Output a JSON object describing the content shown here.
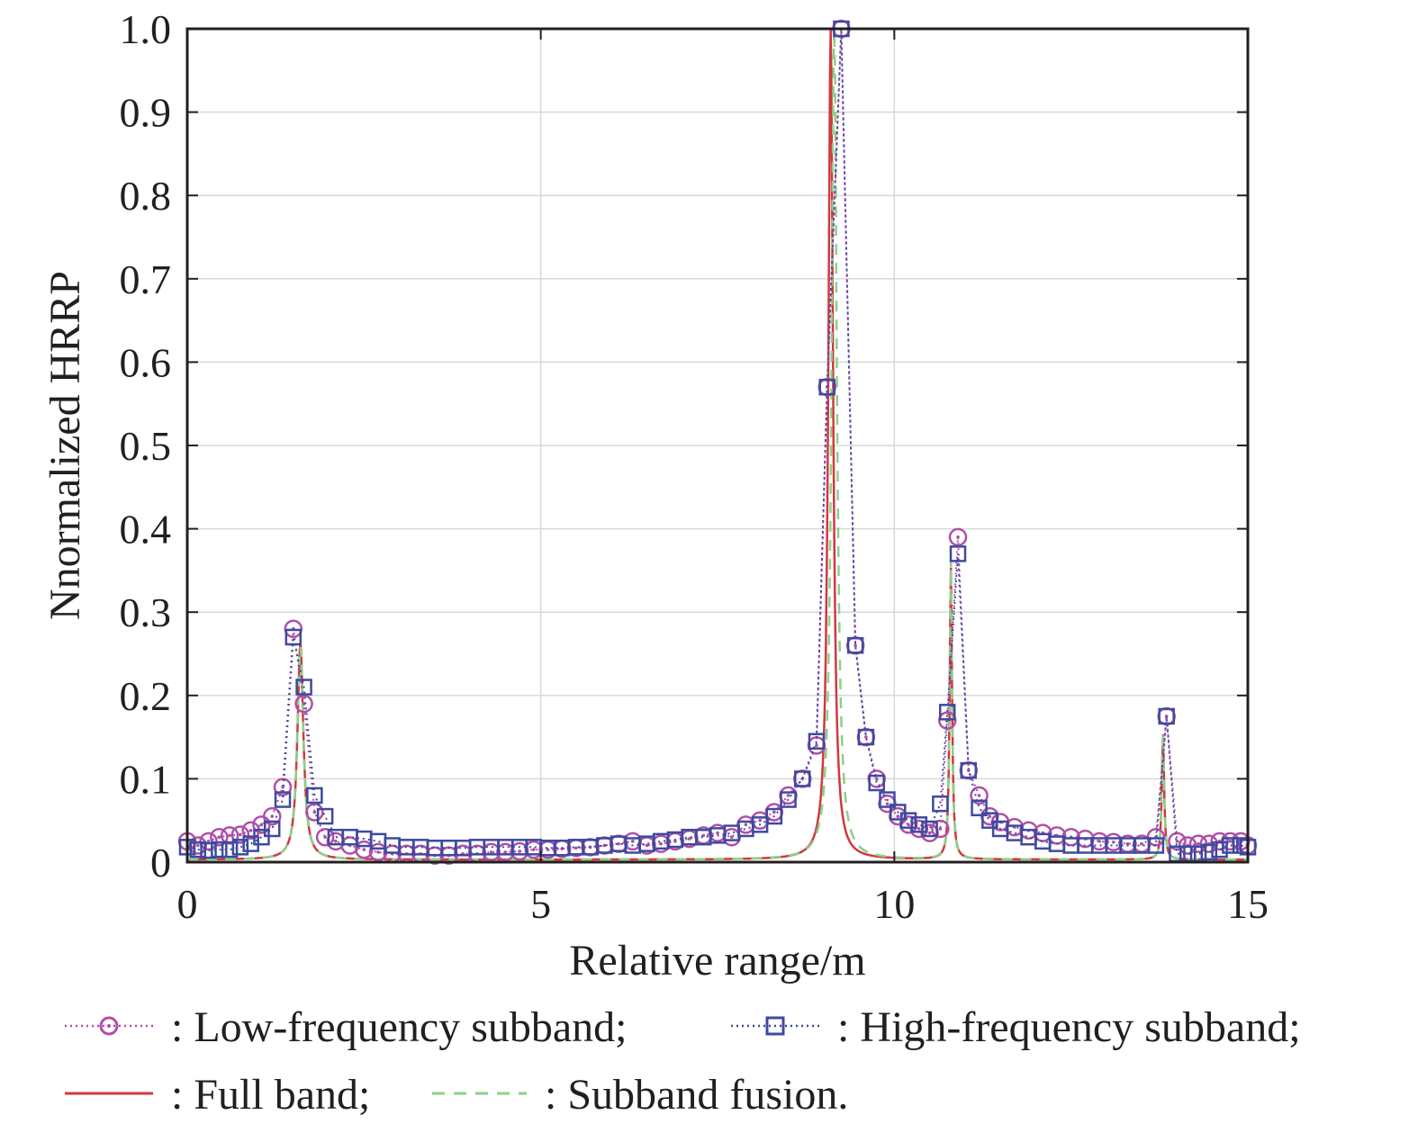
{
  "chart_data": {
    "type": "line",
    "xlabel": "Relative range/m",
    "ylabel": "Nnormalized HRRP",
    "xlim": [
      0,
      15
    ],
    "ylim": [
      0,
      1.0
    ],
    "x_ticks": [
      0,
      5,
      10,
      15
    ],
    "x_tick_labels": [
      "0",
      "5",
      "10",
      "15"
    ],
    "y_ticks": [
      0,
      0.1,
      0.2,
      0.3,
      0.4,
      0.5,
      0.6,
      0.7,
      0.8,
      0.9,
      1.0
    ],
    "y_tick_labels": [
      "0",
      "0.1",
      "0.2",
      "0.3",
      "0.4",
      "0.5",
      "0.6",
      "0.7",
      "0.8",
      "0.9",
      "1.0"
    ],
    "grid": true,
    "legend_position": "bottom",
    "series": [
      {
        "name": ": Low-frequency subband;",
        "color": "#b04fa8",
        "line_style": "dotted",
        "marker": "circle",
        "x": [
          0,
          0.15,
          0.3,
          0.45,
          0.6,
          0.75,
          0.9,
          1.05,
          1.2,
          1.35,
          1.5,
          1.65,
          1.8,
          1.95,
          2.1,
          2.3,
          2.5,
          2.7,
          2.9,
          3.1,
          3.3,
          3.5,
          3.7,
          3.9,
          4.1,
          4.3,
          4.5,
          4.7,
          4.9,
          5.1,
          5.3,
          5.5,
          5.7,
          5.9,
          6.1,
          6.3,
          6.5,
          6.7,
          6.9,
          7.1,
          7.3,
          7.5,
          7.7,
          7.9,
          8.1,
          8.3,
          8.5,
          8.7,
          8.9,
          9.05,
          9.25,
          9.45,
          9.6,
          9.75,
          9.9,
          10.05,
          10.2,
          10.35,
          10.5,
          10.65,
          10.75,
          10.9,
          11.05,
          11.2,
          11.35,
          11.5,
          11.7,
          11.9,
          12.1,
          12.3,
          12.5,
          12.7,
          12.9,
          13.1,
          13.3,
          13.5,
          13.7,
          13.85,
          14.0,
          14.15,
          14.3,
          14.45,
          14.6,
          14.75,
          14.9,
          15.0
        ],
        "y": [
          0.025,
          0.02,
          0.025,
          0.03,
          0.032,
          0.033,
          0.038,
          0.045,
          0.055,
          0.09,
          0.28,
          0.19,
          0.06,
          0.03,
          0.025,
          0.02,
          0.015,
          0.012,
          0.01,
          0.01,
          0.01,
          0.008,
          0.008,
          0.01,
          0.01,
          0.012,
          0.012,
          0.013,
          0.015,
          0.015,
          0.016,
          0.017,
          0.018,
          0.02,
          0.022,
          0.025,
          0.02,
          0.022,
          0.025,
          0.028,
          0.032,
          0.035,
          0.03,
          0.045,
          0.05,
          0.06,
          0.08,
          0.1,
          0.14,
          0.57,
          1.0,
          0.26,
          0.15,
          0.1,
          0.07,
          0.055,
          0.045,
          0.04,
          0.035,
          0.04,
          0.17,
          0.39,
          0.11,
          0.08,
          0.055,
          0.048,
          0.042,
          0.038,
          0.035,
          0.032,
          0.03,
          0.028,
          0.025,
          0.024,
          0.022,
          0.022,
          0.03,
          0.175,
          0.025,
          0.02,
          0.022,
          0.022,
          0.025,
          0.025,
          0.025,
          0.02
        ]
      },
      {
        "name": ": High-frequency subband;",
        "color": "#3d4aa0",
        "line_style": "dotted",
        "marker": "square",
        "x": [
          0,
          0.15,
          0.3,
          0.45,
          0.6,
          0.75,
          0.9,
          1.05,
          1.2,
          1.35,
          1.5,
          1.65,
          1.8,
          1.95,
          2.1,
          2.3,
          2.5,
          2.7,
          2.9,
          3.1,
          3.3,
          3.5,
          3.7,
          3.9,
          4.1,
          4.3,
          4.5,
          4.7,
          4.9,
          5.1,
          5.3,
          5.5,
          5.7,
          5.9,
          6.1,
          6.3,
          6.5,
          6.7,
          6.9,
          7.1,
          7.3,
          7.5,
          7.7,
          7.9,
          8.1,
          8.3,
          8.5,
          8.7,
          8.9,
          9.05,
          9.25,
          9.45,
          9.6,
          9.75,
          9.9,
          10.05,
          10.2,
          10.35,
          10.5,
          10.65,
          10.75,
          10.9,
          11.05,
          11.2,
          11.35,
          11.5,
          11.7,
          11.9,
          12.1,
          12.3,
          12.5,
          12.7,
          12.9,
          13.1,
          13.3,
          13.5,
          13.7,
          13.85,
          14.0,
          14.15,
          14.3,
          14.45,
          14.6,
          14.75,
          14.9,
          15.0
        ],
        "y": [
          0.018,
          0.015,
          0.014,
          0.015,
          0.015,
          0.018,
          0.022,
          0.03,
          0.04,
          0.075,
          0.27,
          0.21,
          0.08,
          0.055,
          0.03,
          0.03,
          0.028,
          0.025,
          0.02,
          0.018,
          0.018,
          0.017,
          0.017,
          0.017,
          0.018,
          0.018,
          0.018,
          0.018,
          0.018,
          0.017,
          0.017,
          0.018,
          0.018,
          0.02,
          0.022,
          0.02,
          0.022,
          0.025,
          0.027,
          0.03,
          0.03,
          0.032,
          0.035,
          0.04,
          0.045,
          0.055,
          0.075,
          0.1,
          0.145,
          0.57,
          1.0,
          0.26,
          0.15,
          0.095,
          0.075,
          0.06,
          0.05,
          0.045,
          0.04,
          0.07,
          0.18,
          0.37,
          0.11,
          0.065,
          0.05,
          0.04,
          0.035,
          0.03,
          0.025,
          0.022,
          0.02,
          0.02,
          0.02,
          0.02,
          0.02,
          0.02,
          0.02,
          0.175,
          0.01,
          0.01,
          0.01,
          0.012,
          0.015,
          0.02,
          0.02,
          0.018
        ]
      },
      {
        "name": ": Full band;",
        "color": "#d0393f",
        "line_style": "solid",
        "marker": "none",
        "peaks": [
          {
            "x": 1.6,
            "height": 0.26,
            "width": 0.05
          },
          {
            "x": 9.1,
            "height": 1.0,
            "width": 0.04
          },
          {
            "x": 10.8,
            "height": 0.35,
            "width": 0.02
          },
          {
            "x": 13.8,
            "height": 0.15,
            "width": 0.02
          }
        ]
      },
      {
        "name": ": Subband fusion.",
        "color": "#8dd08a",
        "line_style": "dashed",
        "marker": "none",
        "peaks": [
          {
            "x": 1.6,
            "height": 0.255,
            "width": 0.05
          },
          {
            "x": 9.15,
            "height": 1.0,
            "width": 0.045
          },
          {
            "x": 10.8,
            "height": 0.36,
            "width": 0.02
          },
          {
            "x": 13.8,
            "height": 0.15,
            "width": 0.02
          }
        ]
      }
    ]
  }
}
